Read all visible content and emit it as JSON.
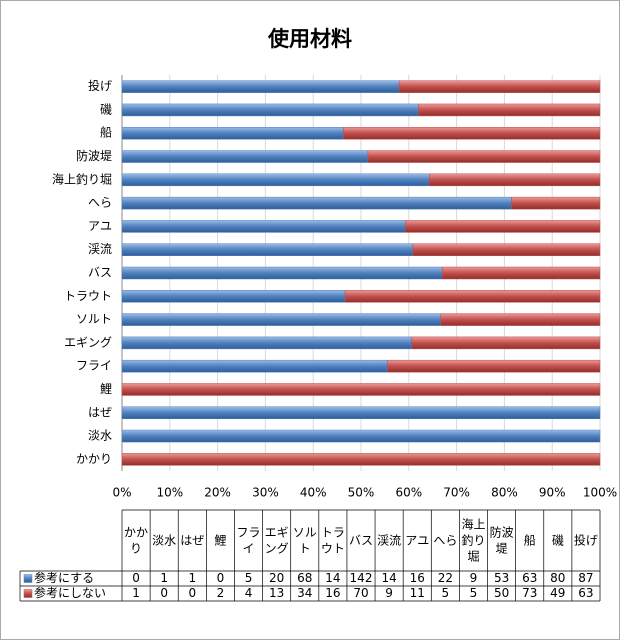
{
  "chart_data": {
    "type": "bar",
    "orientation": "horizontal",
    "stack": "percent",
    "title": "使用材料",
    "categories": [
      "かかり",
      "淡水",
      "はぜ",
      "鯉",
      "フライ",
      "エギング",
      "ソルト",
      "トラウト",
      "バス",
      "渓流",
      "アユ",
      "へら",
      "海上釣り堀",
      "防波堤",
      "船",
      "磯",
      "投げ"
    ],
    "series": [
      {
        "name": "参考にする",
        "color": "#4f81bd",
        "values": [
          0,
          1,
          1,
          0,
          5,
          20,
          68,
          14,
          142,
          14,
          16,
          22,
          9,
          53,
          63,
          80,
          87
        ]
      },
      {
        "name": "参考にしない",
        "color": "#c0504d",
        "values": [
          1,
          0,
          0,
          2,
          4,
          13,
          34,
          16,
          70,
          9,
          11,
          5,
          5,
          50,
          73,
          49,
          63
        ]
      }
    ],
    "xlim": [
      0,
      100
    ],
    "xticks": [
      {
        "value": 0,
        "label": "0%"
      },
      {
        "value": 10,
        "label": "10%"
      },
      {
        "value": 20,
        "label": "20%"
      },
      {
        "value": 30,
        "label": "30%"
      },
      {
        "value": 40,
        "label": "40%"
      },
      {
        "value": 50,
        "label": "50%"
      },
      {
        "value": 60,
        "label": "60%"
      },
      {
        "value": 70,
        "label": "70%"
      },
      {
        "value": 80,
        "label": "80%"
      },
      {
        "value": 90,
        "label": "90%"
      },
      {
        "value": 100,
        "label": "100%"
      }
    ],
    "grid": true
  }
}
